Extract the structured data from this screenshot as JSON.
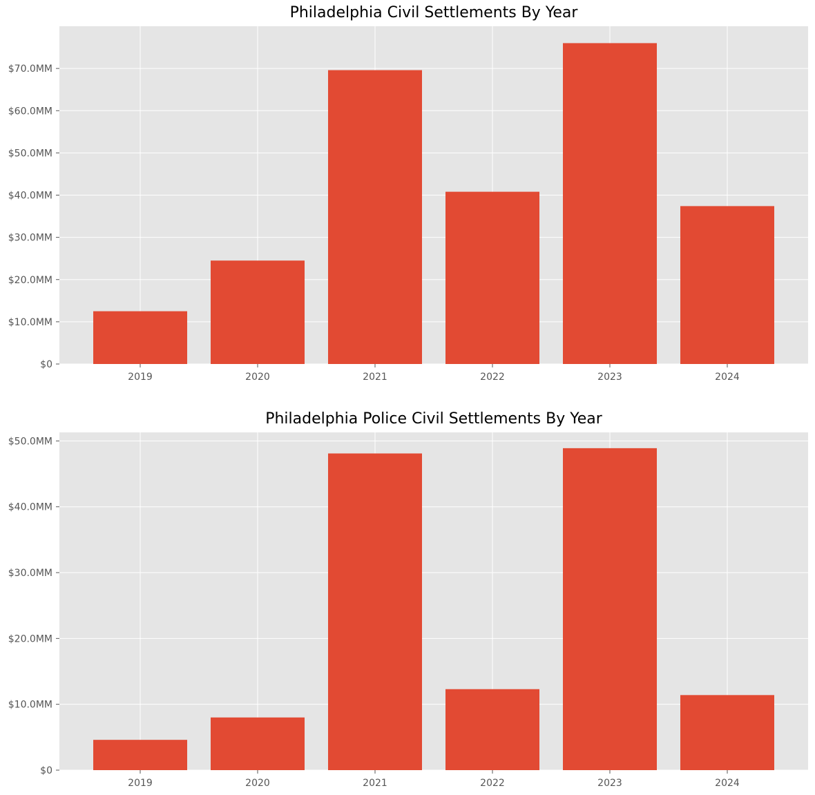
{
  "chart_data": [
    {
      "type": "bar",
      "title": "Philadelphia Civil Settlements By Year",
      "xlabel": "",
      "ylabel": "",
      "categories": [
        "2019",
        "2020",
        "2021",
        "2022",
        "2023",
        "2024"
      ],
      "values": [
        12.5,
        24.5,
        69.6,
        40.8,
        76.0,
        37.4
      ],
      "ylim": [
        0,
        80
      ],
      "yticks": [
        0,
        10,
        20,
        30,
        40,
        50,
        60,
        70
      ],
      "ytick_labels": [
        "$0",
        "$10.0MM",
        "$20.0MM",
        "$30.0MM",
        "$40.0MM",
        "$50.0MM",
        "$60.0MM",
        "$70.0MM"
      ],
      "grid": true,
      "style": "ggplot",
      "bar_color": "#E24A33",
      "background_color": "#E5E5E5"
    },
    {
      "type": "bar",
      "title": "Philadelphia Police Civil Settlements By Year",
      "xlabel": "",
      "ylabel": "",
      "categories": [
        "2019",
        "2020",
        "2021",
        "2022",
        "2023",
        "2024"
      ],
      "values": [
        4.6,
        8.0,
        48.1,
        12.3,
        48.9,
        11.4
      ],
      "ylim": [
        0,
        51.3
      ],
      "yticks": [
        0,
        10,
        20,
        30,
        40,
        50
      ],
      "ytick_labels": [
        "$0",
        "$10.0MM",
        "$20.0MM",
        "$30.0MM",
        "$40.0MM",
        "$50.0MM"
      ],
      "grid": true,
      "style": "ggplot",
      "bar_color": "#E24A33",
      "background_color": "#E5E5E5"
    }
  ]
}
